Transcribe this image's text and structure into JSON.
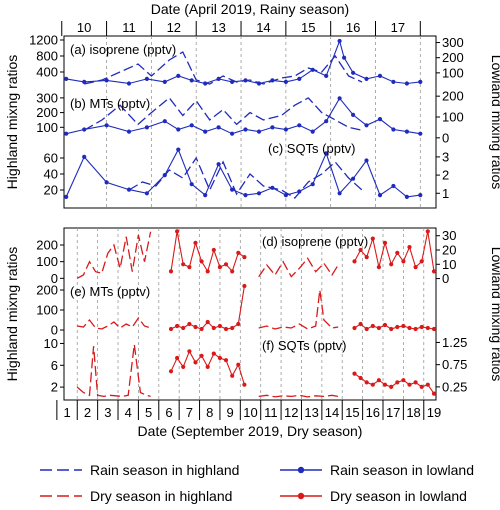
{
  "top_axis": {
    "label": "Date (April 2019, Rainy season)",
    "days": [
      "10",
      "11",
      "12",
      "13",
      "14",
      "15",
      "16",
      "17"
    ]
  },
  "bottom_axis": {
    "label": "Date (September 2019, Dry season)",
    "days": [
      "1",
      "2",
      "3",
      "4",
      "5",
      "6",
      "7",
      "8",
      "9",
      "10",
      "11",
      "12",
      "13",
      "14",
      "15",
      "16",
      "17",
      "18",
      "19"
    ]
  },
  "left_labels": {
    "rain": "Highland mixng ratios",
    "dry": "Highland mixng ratios"
  },
  "right_labels": {
    "rain": "Lowland mixing ratios",
    "dry": "Lowland mixing ratios"
  },
  "colors": {
    "rain": "#1f2bbd",
    "dry": "#d91a1a"
  },
  "legend": {
    "rain_highland": "Rain season in highland",
    "rain_lowland": "Rain season in lowland",
    "dry_highland": "Dry season in highland",
    "dry_lowland": "Dry season in lowland"
  },
  "chart_data": [
    {
      "type": "line",
      "title": "(a) isoprene (pptv)",
      "season": "rain",
      "yticks_left": [
        400,
        800,
        1200
      ],
      "ylim_left": [
        0,
        1250
      ],
      "yticks_right": [
        100,
        200,
        300
      ],
      "ylim_right": [
        0,
        330
      ],
      "series": [
        {
          "style": "dashed",
          "axis": "left",
          "x": [
            10.0,
            10.4,
            10.8,
            11.2,
            11.5,
            11.9,
            12.2,
            12.5,
            12.8,
            13.1,
            13.4,
            13.7,
            14.0,
            14.4,
            14.7,
            15.0,
            15.3,
            15.6,
            15.9,
            16.2
          ],
          "y": [
            100,
            200,
            400,
            600,
            300,
            700,
            900,
            200,
            100,
            300,
            150,
            200,
            100,
            250,
            300,
            500,
            400,
            800,
            300,
            150
          ]
        },
        {
          "style": "solid",
          "axis": "right",
          "x": [
            9.6,
            10.0,
            10.5,
            11.0,
            11.4,
            11.8,
            12.1,
            12.4,
            12.7,
            13.0,
            13.3,
            13.6,
            13.9,
            14.2,
            14.5,
            14.8,
            15.1,
            15.4,
            15.7,
            15.8,
            16.0,
            16.3,
            16.6,
            16.9,
            17.2,
            17.5
          ],
          "y": [
            60,
            40,
            50,
            30,
            60,
            40,
            80,
            50,
            30,
            60,
            40,
            50,
            30,
            50,
            40,
            60,
            120,
            80,
            310,
            200,
            100,
            60,
            80,
            40,
            30,
            40
          ]
        }
      ]
    },
    {
      "type": "line",
      "title": "(b) MTs (pptv)",
      "season": "rain",
      "yticks_left": [
        100,
        200,
        300
      ],
      "ylim_left": [
        0,
        340
      ],
      "yticks_right": [
        0,
        100,
        200
      ],
      "ylim_right": [
        -20,
        220
      ],
      "series": [
        {
          "style": "dashed",
          "axis": "left",
          "x": [
            10.0,
            10.4,
            10.8,
            11.2,
            11.5,
            11.9,
            12.2,
            12.5,
            12.8,
            13.1,
            13.4,
            13.7,
            14.0,
            14.4,
            14.7,
            15.0,
            15.3,
            15.6,
            15.9,
            16.2
          ],
          "y": [
            80,
            150,
            250,
            120,
            200,
            300,
            180,
            280,
            150,
            220,
            120,
            200,
            150,
            180,
            250,
            300,
            200,
            150,
            100,
            80
          ]
        },
        {
          "style": "solid",
          "axis": "right",
          "x": [
            9.6,
            10.0,
            10.5,
            11.0,
            11.4,
            11.8,
            12.1,
            12.4,
            12.7,
            13.0,
            13.3,
            13.6,
            13.9,
            14.2,
            14.5,
            14.8,
            15.1,
            15.4,
            15.7,
            16.0,
            16.3,
            16.6,
            16.9,
            17.2,
            17.5
          ],
          "y": [
            20,
            40,
            60,
            30,
            50,
            80,
            40,
            60,
            30,
            50,
            20,
            40,
            30,
            50,
            40,
            60,
            30,
            80,
            190,
            110,
            60,
            90,
            40,
            30,
            20
          ]
        }
      ]
    },
    {
      "type": "line",
      "title": "(c) SQTs (pptv)",
      "season": "rain",
      "yticks_left": [
        20,
        40,
        60
      ],
      "ylim_left": [
        0,
        75
      ],
      "yticks_right": [
        1,
        2,
        3
      ],
      "ylim_right": [
        0.3,
        3.6
      ],
      "series": [
        {
          "style": "dashed",
          "axis": "left",
          "x": [
            11.0,
            11.3,
            11.6,
            11.9,
            12.2,
            12.5,
            12.8,
            13.1,
            13.4,
            13.7,
            14.0,
            14.4,
            14.7,
            15.0,
            15.3,
            15.6,
            15.9,
            16.2
          ],
          "y": [
            20,
            30,
            25,
            45,
            35,
            60,
            20,
            55,
            15,
            40,
            25,
            20,
            10,
            30,
            40,
            55,
            35,
            20
          ]
        },
        {
          "style": "solid",
          "axis": "right",
          "x": [
            9.6,
            10.0,
            10.5,
            11.0,
            11.4,
            11.8,
            12.1,
            12.4,
            12.7,
            13.0,
            13.3,
            13.6,
            13.9,
            14.2,
            14.5,
            14.8,
            15.1,
            15.4,
            15.7,
            16.0,
            16.3,
            16.6,
            16.9,
            17.2,
            17.5
          ],
          "y": [
            0.8,
            3.0,
            1.6,
            1.2,
            1.0,
            2.0,
            3.4,
            1.5,
            0.9,
            2.6,
            1.2,
            0.9,
            1.0,
            1.3,
            0.9,
            1.1,
            1.5,
            3.2,
            1.0,
            1.8,
            2.8,
            0.9,
            1.4,
            0.8,
            0.9
          ]
        }
      ]
    },
    {
      "type": "line",
      "title": "(d) isoprene (pptv)",
      "season": "dry",
      "yticks_left": [
        0,
        100,
        200
      ],
      "ylim_left": [
        -10,
        290
      ],
      "yticks_right": [
        0,
        10,
        20,
        30
      ],
      "ylim_right": [
        -1,
        34
      ],
      "series": [
        {
          "style": "dashed",
          "axis": "left",
          "x": [
            1.5,
            1.8,
            2.1,
            2.4,
            2.7,
            3.0,
            3.3,
            3.6,
            3.9,
            4.2,
            4.5,
            4.8,
            5.1
          ],
          "y": [
            0,
            20,
            100,
            40,
            30,
            150,
            200,
            60,
            250,
            40,
            260,
            100,
            280
          ]
        },
        {
          "style": "dashed",
          "axis": "left",
          "x": [
            10.4,
            10.8,
            11.2,
            11.6,
            12.0,
            12.4,
            12.8,
            13.2,
            13.6,
            14.0,
            14.3
          ],
          "y": [
            10,
            80,
            20,
            100,
            10,
            60,
            120,
            40,
            90,
            20,
            80
          ]
        },
        {
          "style": "solid",
          "axis": "right",
          "x": [
            6.1,
            6.4,
            6.7,
            7.0,
            7.3,
            7.6,
            7.9,
            8.2,
            8.5,
            8.8,
            9.1,
            9.4,
            9.7
          ],
          "y": [
            5,
            33,
            10,
            8,
            25,
            12,
            5,
            20,
            8,
            10,
            5,
            18,
            15
          ]
        },
        {
          "style": "solid",
          "axis": "right",
          "x": [
            15.1,
            15.4,
            15.7,
            16.0,
            16.3,
            16.6,
            16.9,
            17.2,
            17.5,
            17.8,
            18.1,
            18.4,
            18.7,
            19.0
          ],
          "y": [
            12,
            20,
            15,
            28,
            8,
            25,
            10,
            18,
            12,
            22,
            8,
            12,
            33,
            5
          ]
        }
      ]
    },
    {
      "type": "line",
      "title": "(e) MTs (pptv)",
      "season": "dry",
      "yticks_left": [
        0,
        100,
        200
      ],
      "ylim_left": [
        -20,
        230
      ],
      "yticks_right": [],
      "ylim_right": [
        0,
        10
      ],
      "series": [
        {
          "style": "dashed",
          "axis": "left",
          "x": [
            1.5,
            1.8,
            2.1,
            2.4,
            2.7,
            3.0,
            3.3,
            3.6,
            3.9,
            4.2,
            4.5,
            4.8,
            5.1
          ],
          "y": [
            20,
            15,
            50,
            10,
            5,
            20,
            40,
            10,
            30,
            15,
            60,
            20,
            10
          ]
        },
        {
          "style": "dashed",
          "axis": "left",
          "x": [
            10.4,
            10.8,
            11.2,
            11.6,
            12.0,
            12.4,
            12.8,
            13.2,
            13.4,
            13.6,
            14.0,
            14.3
          ],
          "y": [
            10,
            20,
            5,
            15,
            10,
            30,
            5,
            20,
            200,
            50,
            10,
            15
          ]
        },
        {
          "style": "solid",
          "axis": "left",
          "x": [
            6.1,
            6.4,
            6.7,
            7.0,
            7.3,
            7.6,
            7.9,
            8.2,
            8.5,
            8.8,
            9.1,
            9.4,
            9.7
          ],
          "y": [
            5,
            20,
            10,
            30,
            15,
            5,
            40,
            10,
            20,
            5,
            10,
            30,
            220
          ]
        },
        {
          "style": "solid",
          "axis": "left",
          "x": [
            15.1,
            15.4,
            15.7,
            16.0,
            16.3,
            16.6,
            16.9,
            17.2,
            17.5,
            17.8,
            18.1,
            18.4,
            18.7,
            19.0
          ],
          "y": [
            10,
            30,
            5,
            20,
            10,
            25,
            5,
            15,
            20,
            10,
            5,
            15,
            10,
            5
          ]
        }
      ]
    },
    {
      "type": "line",
      "title": "(f) SQTs (pptv)",
      "season": "dry",
      "yticks_left": [
        2,
        6,
        10
      ],
      "ylim_left": [
        0,
        11
      ],
      "yticks_right": [
        0.25,
        0.75,
        1.25
      ],
      "ylim_right": [
        0,
        1.35
      ],
      "series": [
        {
          "style": "dashed",
          "axis": "left",
          "x": [
            1.5,
            1.8,
            2.1,
            2.3,
            2.5,
            2.8,
            3.1,
            3.4,
            3.7,
            4.0,
            4.3,
            4.6,
            4.9,
            5.1
          ],
          "y": [
            2,
            1,
            0.5,
            9.5,
            0.5,
            0.3,
            0.5,
            0.4,
            0.3,
            0.5,
            9.8,
            1,
            0.5,
            0.3
          ]
        },
        {
          "style": "dashed",
          "axis": "left",
          "x": [
            10.4,
            10.8,
            11.2,
            11.6,
            12.0,
            12.4,
            12.8,
            13.2,
            13.6,
            14.0,
            14.3
          ],
          "y": [
            0.3,
            0.5,
            0.2,
            0.4,
            0.3,
            0.5,
            0.2,
            0.4,
            0.3,
            0.5,
            0.3
          ]
        },
        {
          "style": "solid",
          "axis": "right",
          "x": [
            6.1,
            6.4,
            6.7,
            7.0,
            7.3,
            7.6,
            7.9,
            8.2,
            8.5,
            8.8,
            9.1,
            9.4,
            9.7
          ],
          "y": [
            0.6,
            0.9,
            0.7,
            1.05,
            0.8,
            0.95,
            0.7,
            1.0,
            0.9,
            0.85,
            0.5,
            0.75,
            0.3
          ]
        },
        {
          "style": "solid",
          "axis": "right",
          "x": [
            15.1,
            15.4,
            15.7,
            16.0,
            16.3,
            16.6,
            16.9,
            17.2,
            17.5,
            17.8,
            18.1,
            18.4,
            18.7,
            19.0
          ],
          "y": [
            0.55,
            0.45,
            0.35,
            0.3,
            0.4,
            0.3,
            0.25,
            0.35,
            0.4,
            0.3,
            0.35,
            0.25,
            0.3,
            0.1
          ]
        }
      ]
    }
  ]
}
